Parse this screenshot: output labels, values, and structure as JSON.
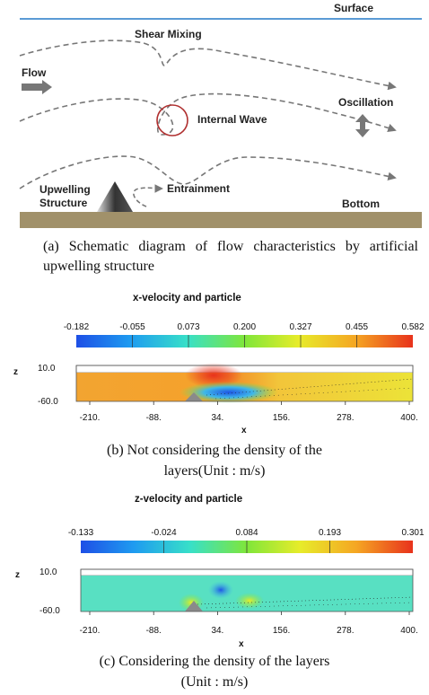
{
  "schematic": {
    "surface_label": "Surface",
    "bottom_label": "Bottom",
    "shear_mixing_label": "Shear Mixing",
    "flow_label": "Flow",
    "internal_wave_label": "Internal Wave",
    "oscillation_label": "Oscillation",
    "upwelling_label_line1": "Upwelling",
    "upwelling_label_line2": "Structure",
    "entrainment_label": "Entrainment",
    "colors": {
      "surface_line": "#5b9bd5",
      "seabed": "#a1916a",
      "wave_circle": "#b03030",
      "arrow": "#777777"
    }
  },
  "captions": {
    "a": "(a) Schematic diagram of flow characteristics by artificial upwelling structure",
    "b_line1": "(b) Not considering the density of the",
    "b_line2": "layers(Unit : m/s)",
    "c_line1": "(c) Considering the density of the layers",
    "c_line2": "(Unit : m/s)"
  },
  "plot_b": {
    "title": "x-velocity and particle",
    "colorbar_ticks": [
      "-0.182",
      "-0.055",
      "0.073",
      "0.200",
      "0.327",
      "0.455",
      "0.582"
    ],
    "y_label": "z",
    "y_ticks": [
      "10.0",
      "-60.0"
    ],
    "x_label": "x",
    "x_ticks": [
      "-210.",
      "-88.",
      "34.",
      "156.",
      "278.",
      "400."
    ]
  },
  "plot_c": {
    "title": "z-velocity and particle",
    "colorbar_ticks": [
      "-0.133",
      "-0.024",
      "0.084",
      "0.193",
      "0.301"
    ],
    "y_label": "z",
    "y_ticks": [
      "10.0",
      "-60.0"
    ],
    "x_label": "x",
    "x_ticks": [
      "-210.",
      "-88.",
      "34.",
      "156.",
      "278.",
      "400."
    ]
  }
}
